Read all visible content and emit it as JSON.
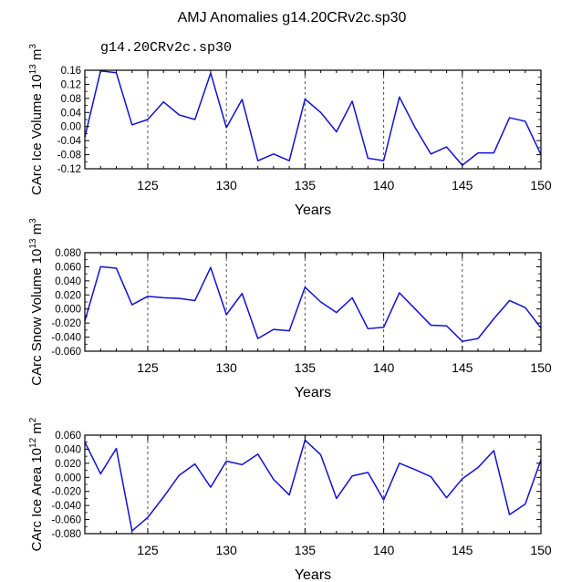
{
  "title": "AMJ Anomalies g14.20CRv2c.sp30",
  "subtitle": "g14.20CRv2c.sp30",
  "colors": {
    "series": "#1010d8",
    "axes": "#000000",
    "grid": "#555555",
    "subtitle": "#4a4ad0"
  },
  "chart_data": [
    {
      "type": "line",
      "ylabel": "CArc Ice Volume 10",
      "ylabel_sup": "13",
      "ylabel_tail": " m",
      "ylabel_unit_sup": "3",
      "xlabel": "Years",
      "xlim": [
        121,
        150
      ],
      "ylim": [
        -0.12,
        0.16
      ],
      "xticks": [
        "125",
        "130",
        "135",
        "140",
        "145",
        "150"
      ],
      "yticks": [
        "0.16",
        "0.12",
        "0.08",
        "0.04",
        "0.00",
        "-0.04",
        "-0.08",
        "-0.12"
      ],
      "grid": "vertical dashed at 125, 130, 135, 140, 145",
      "series": [
        {
          "name": "g14.20CRv2c.sp30",
          "x": [
            121,
            122,
            123,
            124,
            125,
            126,
            127,
            128,
            129,
            130,
            131,
            132,
            133,
            134,
            135,
            136,
            137,
            138,
            139,
            140,
            141,
            142,
            143,
            144,
            145,
            146,
            147,
            148,
            149,
            150
          ],
          "values": [
            -0.03,
            0.158,
            0.153,
            0.005,
            0.02,
            0.07,
            0.033,
            0.02,
            0.152,
            -0.003,
            0.077,
            -0.097,
            -0.078,
            -0.097,
            0.078,
            0.04,
            -0.015,
            0.072,
            -0.09,
            -0.097,
            0.084,
            -0.003,
            -0.078,
            -0.058,
            -0.11,
            -0.075,
            -0.075,
            0.025,
            0.015,
            -0.08
          ]
        }
      ]
    },
    {
      "type": "line",
      "ylabel": "CArc Snow Volume 10",
      "ylabel_sup": "13",
      "ylabel_tail": " m",
      "ylabel_unit_sup": "3",
      "xlabel": "Years",
      "xlim": [
        121,
        150
      ],
      "ylim": [
        -0.06,
        0.08
      ],
      "xticks": [
        "125",
        "130",
        "135",
        "140",
        "145",
        "150"
      ],
      "yticks": [
        "0.080",
        "0.060",
        "0.040",
        "0.020",
        "0.000",
        "-0.020",
        "-0.040",
        "-0.060"
      ],
      "grid": "vertical dashed at 125, 130, 135, 140, 145",
      "series": [
        {
          "name": "g14.20CRv2c.sp30",
          "x": [
            121,
            122,
            123,
            124,
            125,
            126,
            127,
            128,
            129,
            130,
            131,
            132,
            133,
            134,
            135,
            136,
            137,
            138,
            139,
            140,
            141,
            142,
            143,
            144,
            145,
            146,
            147,
            148,
            149,
            150
          ],
          "values": [
            -0.017,
            0.06,
            0.058,
            0.006,
            0.018,
            0.016,
            0.015,
            0.012,
            0.059,
            -0.008,
            0.022,
            -0.042,
            -0.029,
            -0.031,
            0.031,
            0.01,
            -0.005,
            0.016,
            -0.028,
            -0.026,
            0.023,
            0.0,
            -0.023,
            -0.024,
            -0.046,
            -0.042,
            -0.014,
            0.012,
            0.002,
            -0.027
          ]
        }
      ]
    },
    {
      "type": "line",
      "ylabel": "CArc Ice Area 10",
      "ylabel_sup": "12",
      "ylabel_tail": " m",
      "ylabel_unit_sup": "2",
      "xlabel": "Years",
      "xlim": [
        121,
        150
      ],
      "ylim": [
        -0.08,
        0.06
      ],
      "xticks": [
        "125",
        "130",
        "135",
        "140",
        "145",
        "150"
      ],
      "yticks": [
        "0.060",
        "0.040",
        "0.020",
        "0.000",
        "-0.020",
        "-0.040",
        "-0.060",
        "-0.080"
      ],
      "grid": "vertical dashed at 125, 130, 135, 140, 145",
      "series": [
        {
          "name": "g14.20CRv2c.sp30",
          "x": [
            121,
            122,
            123,
            124,
            125,
            126,
            127,
            128,
            129,
            130,
            131,
            132,
            133,
            134,
            135,
            136,
            137,
            138,
            139,
            140,
            141,
            142,
            143,
            144,
            145,
            146,
            147,
            148,
            149,
            150
          ],
          "values": [
            0.05,
            0.005,
            0.041,
            -0.076,
            -0.057,
            -0.028,
            0.003,
            0.019,
            -0.014,
            0.023,
            0.018,
            0.033,
            -0.003,
            -0.025,
            0.053,
            0.032,
            -0.03,
            0.002,
            0.007,
            -0.032,
            0.02,
            0.011,
            0.001,
            -0.029,
            -0.002,
            0.014,
            0.038,
            -0.053,
            -0.038,
            0.025
          ]
        }
      ]
    }
  ]
}
